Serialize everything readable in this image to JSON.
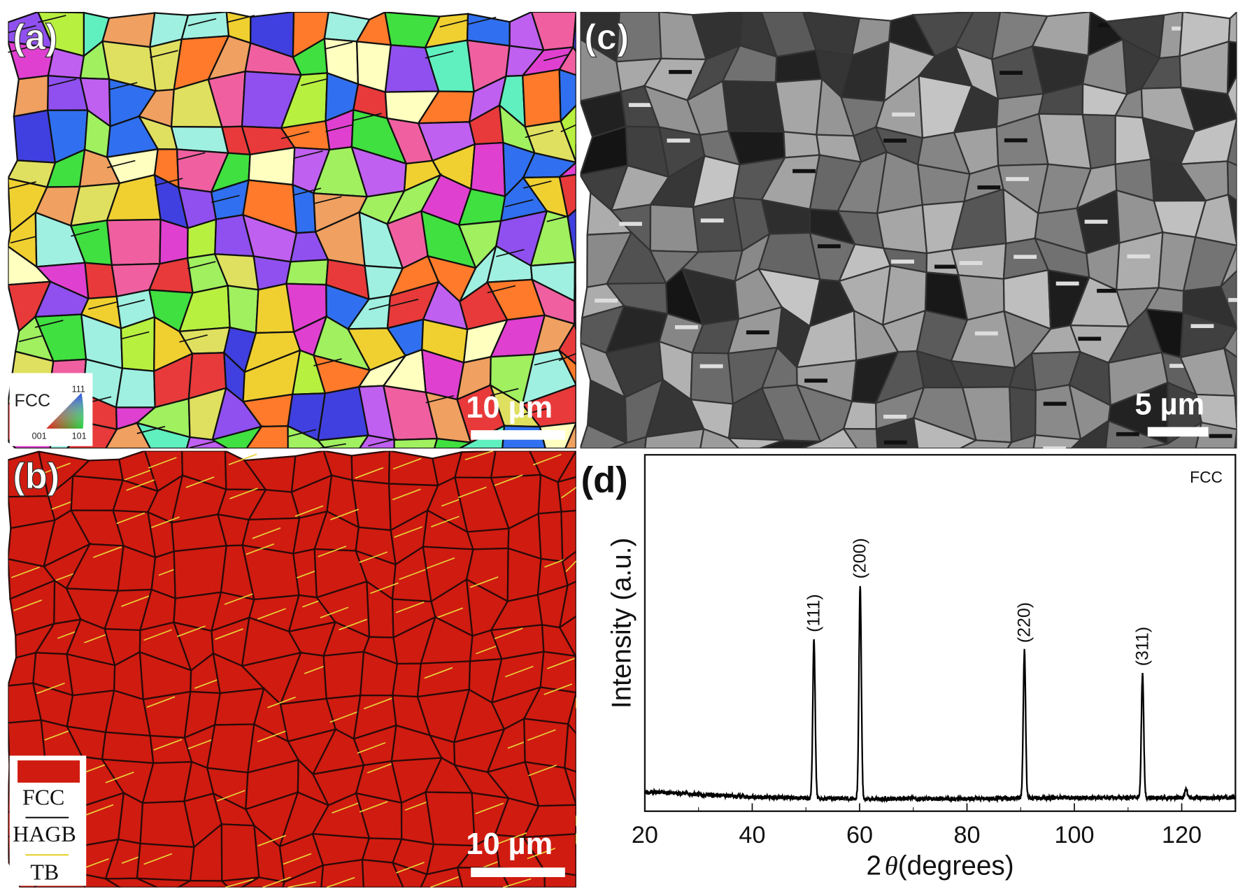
{
  "panels": {
    "a": {
      "label": "(a)",
      "scale_bar": "10 µm",
      "legend": {
        "title": "FCC",
        "corner_111": "111",
        "corner_001": "001",
        "corner_101": "101"
      }
    },
    "b": {
      "label": "(b)",
      "scale_bar": "10 µm",
      "legend": {
        "phase": "FCC",
        "phase_color": "#d01b10",
        "hagb": "HAGB",
        "hagb_color": "#222222",
        "tb": "TB",
        "tb_color": "#e8d23a"
      }
    },
    "c": {
      "label": "(c)",
      "scale_bar": "5 µm"
    },
    "d": {
      "label": "(d)"
    }
  },
  "chart_data": {
    "type": "line",
    "title": "",
    "annotation": "FCC",
    "xlabel": "2θ (degrees)",
    "xlabel_prefix": "2",
    "xlabel_theta": "θ",
    "xlabel_suffix": "(degrees)",
    "ylabel": "Intensity (a.u.)",
    "xlim": [
      20,
      130
    ],
    "ylim": [
      0,
      1
    ],
    "xticks": [
      "20",
      "40",
      "60",
      "80",
      "100",
      "120"
    ],
    "yticks_shown": false,
    "baseline": {
      "x": [
        20,
        40,
        60,
        80,
        100,
        130
      ],
      "y": [
        0.055,
        0.04,
        0.035,
        0.035,
        0.038,
        0.038
      ]
    },
    "peaks": [
      {
        "label": "(111)",
        "x": 51.5,
        "y": 0.48
      },
      {
        "label": "(200)",
        "x": 60.1,
        "y": 0.63
      },
      {
        "label": "(220)",
        "x": 90.7,
        "y": 0.45
      },
      {
        "label": "(311)",
        "x": 112.7,
        "y": 0.385
      },
      {
        "label": "",
        "x": 120.8,
        "y": 0.065
      }
    ],
    "line_color": "#000000"
  }
}
